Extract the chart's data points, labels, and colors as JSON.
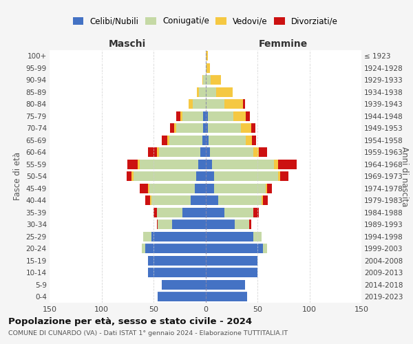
{
  "age_groups": [
    "100+",
    "95-99",
    "90-94",
    "85-89",
    "80-84",
    "75-79",
    "70-74",
    "65-69",
    "60-64",
    "55-59",
    "50-54",
    "45-49",
    "40-44",
    "35-39",
    "30-34",
    "25-29",
    "20-24",
    "15-19",
    "10-14",
    "5-9",
    "0-4"
  ],
  "birth_years": [
    "≤ 1923",
    "1924-1928",
    "1929-1933",
    "1934-1938",
    "1939-1943",
    "1944-1948",
    "1949-1953",
    "1954-1958",
    "1959-1963",
    "1964-1968",
    "1969-1973",
    "1974-1978",
    "1979-1983",
    "1984-1988",
    "1989-1993",
    "1994-1998",
    "1999-2003",
    "2004-2008",
    "2009-2013",
    "2014-2018",
    "2019-2023"
  ],
  "colors": {
    "celibi": "#4472c4",
    "coniugati": "#c5d9a5",
    "vedovi": "#f5c842",
    "divorziati": "#cc1111"
  },
  "maschi": {
    "celibi": [
      0,
      0,
      0,
      0,
      0,
      2,
      2,
      3,
      5,
      7,
      9,
      10,
      14,
      22,
      32,
      52,
      58,
      55,
      55,
      42,
      46
    ],
    "coniugati": [
      0,
      0,
      2,
      6,
      12,
      20,
      26,
      32,
      40,
      56,
      60,
      44,
      38,
      25,
      14,
      8,
      3,
      0,
      0,
      0,
      0
    ],
    "vedovi": [
      0,
      0,
      1,
      2,
      4,
      2,
      2,
      2,
      2,
      2,
      2,
      1,
      1,
      0,
      0,
      0,
      0,
      0,
      0,
      0,
      0
    ],
    "divorziati": [
      0,
      0,
      0,
      0,
      0,
      4,
      4,
      5,
      8,
      10,
      5,
      8,
      5,
      3,
      1,
      0,
      0,
      0,
      0,
      0,
      0
    ]
  },
  "femmine": {
    "celibi": [
      0,
      0,
      0,
      0,
      0,
      2,
      2,
      3,
      4,
      6,
      8,
      8,
      12,
      18,
      28,
      46,
      55,
      50,
      50,
      38,
      40
    ],
    "coniugati": [
      0,
      1,
      5,
      10,
      18,
      25,
      32,
      36,
      42,
      60,
      62,
      50,
      42,
      28,
      14,
      8,
      4,
      0,
      0,
      0,
      0
    ],
    "vedovi": [
      2,
      3,
      10,
      16,
      18,
      12,
      10,
      6,
      5,
      4,
      2,
      1,
      1,
      0,
      0,
      0,
      0,
      0,
      0,
      0,
      0
    ],
    "divorziati": [
      0,
      0,
      0,
      0,
      2,
      4,
      4,
      4,
      8,
      18,
      8,
      5,
      5,
      5,
      2,
      0,
      0,
      0,
      0,
      0,
      0
    ]
  },
  "xlim": 150,
  "title": "Popolazione per età, sesso e stato civile - 2024",
  "subtitle": "COMUNE DI CUNARDO (VA) - Dati ISTAT 1° gennaio 2024 - Elaborazione TUTTITALIA.IT",
  "xlabel_left": "Maschi",
  "xlabel_right": "Femmine",
  "ylabel_left": "Fasce di età",
  "ylabel_right": "Anni di nascita",
  "legend_labels": [
    "Celibi/Nubili",
    "Coniugati/e",
    "Vedovi/e",
    "Divorziati/e"
  ],
  "background_color": "#f5f5f5",
  "plot_bg": "#ffffff"
}
